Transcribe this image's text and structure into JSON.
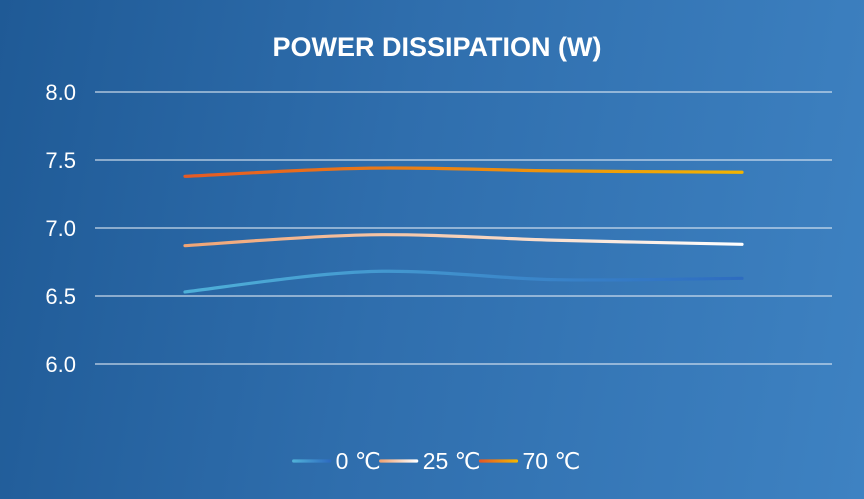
{
  "chart_data": {
    "type": "line",
    "title": "POWER DISSIPATION (W)",
    "xlabel": "",
    "ylabel": "",
    "x": [
      1,
      2,
      3,
      4
    ],
    "ylim": [
      6.0,
      8.0
    ],
    "yticks": [
      "8.0",
      "7.5",
      "7.0",
      "6.5",
      "6.0"
    ],
    "grid": true,
    "legend_position": "bottom",
    "series": [
      {
        "name": "0 ℃",
        "values": [
          6.53,
          6.68,
          6.62,
          6.63
        ],
        "color_start": "#4fb0d8",
        "color_end": "#2e6cc0"
      },
      {
        "name": "25 ℃",
        "values": [
          6.87,
          6.95,
          6.91,
          6.88
        ],
        "color_start": "#f0a474",
        "color_end": "#ffffff"
      },
      {
        "name": "70 ℃",
        "values": [
          7.38,
          7.44,
          7.42,
          7.41
        ],
        "color_start": "#e65a24",
        "color_end": "#f3b400"
      }
    ]
  }
}
